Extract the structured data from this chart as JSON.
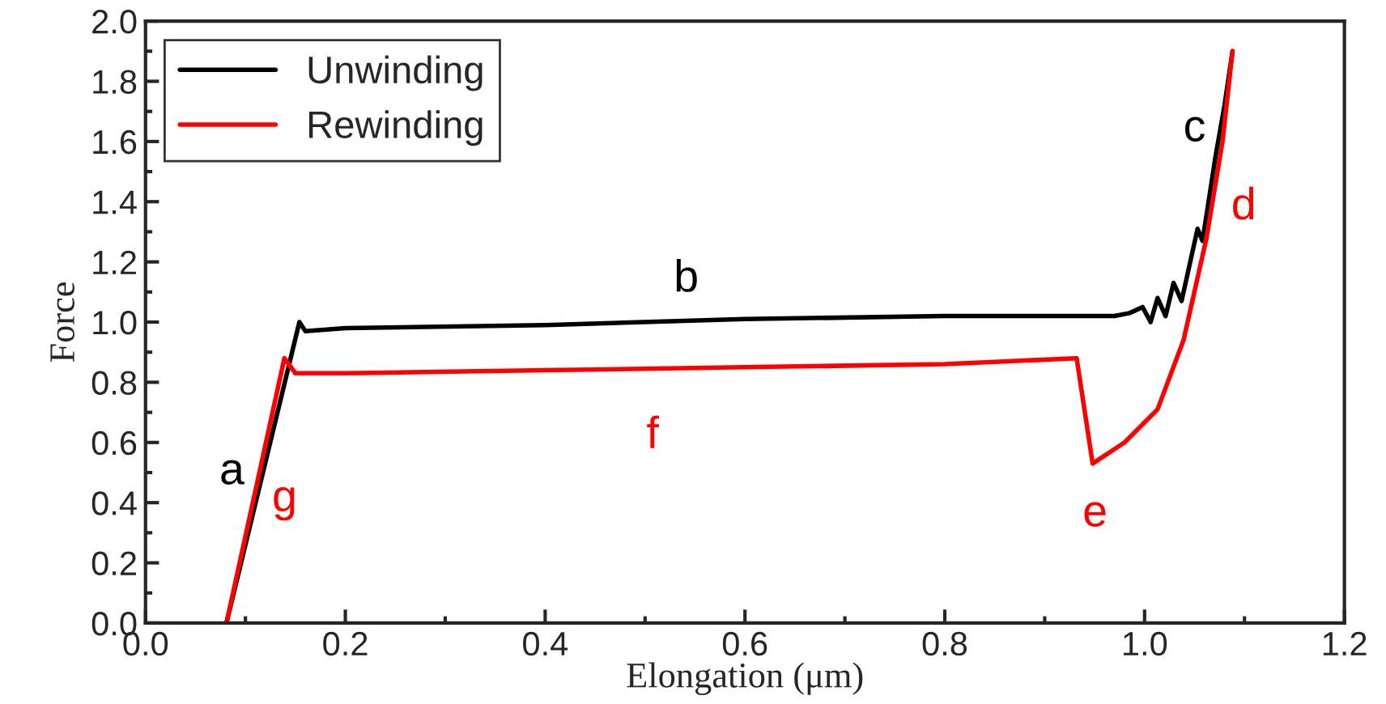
{
  "chart_data": {
    "type": "line",
    "xlabel": "Elongation (μm)",
    "ylabel": "Force",
    "xlim": [
      0.0,
      1.2
    ],
    "ylim": [
      0.0,
      2.0
    ],
    "xticks": [
      {
        "value": 0.0,
        "label": "0.0"
      },
      {
        "value": 0.2,
        "label": "0.2"
      },
      {
        "value": 0.4,
        "label": "0.4"
      },
      {
        "value": 0.6,
        "label": "0.6"
      },
      {
        "value": 0.8,
        "label": "0.8"
      },
      {
        "value": 1.0,
        "label": "1.0"
      },
      {
        "value": 1.2,
        "label": "1.2"
      }
    ],
    "yticks": [
      {
        "value": 0.0,
        "label": "0.0"
      },
      {
        "value": 0.2,
        "label": "0.2"
      },
      {
        "value": 0.4,
        "label": "0.4"
      },
      {
        "value": 0.6,
        "label": "0.6"
      },
      {
        "value": 0.8,
        "label": "0.8"
      },
      {
        "value": 1.0,
        "label": "1.0"
      },
      {
        "value": 1.2,
        "label": "1.2"
      },
      {
        "value": 1.4,
        "label": "1.4"
      },
      {
        "value": 1.6,
        "label": "1.6"
      },
      {
        "value": 1.8,
        "label": "1.8"
      },
      {
        "value": 2.0,
        "label": "2.0"
      }
    ],
    "grid": false,
    "legend": "top left",
    "series": [
      {
        "name": "Unwinding",
        "color": "#000000",
        "x": [
          0.081,
          0.154,
          0.16,
          0.2,
          0.4,
          0.6,
          0.8,
          0.97,
          0.985,
          0.998,
          1.006,
          1.013,
          1.021,
          1.029,
          1.037,
          1.053,
          1.058,
          1.071,
          1.08,
          1.088
        ],
        "values": [
          0.0,
          1.0,
          0.97,
          0.98,
          0.99,
          1.01,
          1.02,
          1.02,
          1.03,
          1.05,
          1.0,
          1.08,
          1.02,
          1.13,
          1.07,
          1.31,
          1.27,
          1.55,
          1.72,
          1.9
        ]
      },
      {
        "name": "Rewinding",
        "color": "#ff0000",
        "x": [
          0.081,
          0.139,
          0.15,
          0.2,
          0.4,
          0.6,
          0.8,
          0.932,
          0.948,
          0.98,
          1.013,
          1.039,
          1.062,
          1.078,
          1.088
        ],
        "values": [
          0.0,
          0.88,
          0.83,
          0.83,
          0.84,
          0.85,
          0.86,
          0.88,
          0.53,
          0.6,
          0.71,
          0.94,
          1.28,
          1.6,
          1.9
        ]
      }
    ],
    "annotations": [
      "a",
      "g",
      "b",
      "f",
      "e",
      "c",
      "d"
    ]
  }
}
